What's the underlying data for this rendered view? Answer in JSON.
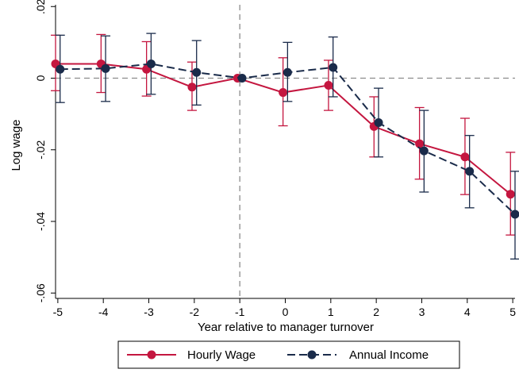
{
  "chart_data": {
    "type": "line",
    "xlabel": "Year relative to manager turnover",
    "ylabel": "Log wage",
    "x": [
      -5,
      -4,
      -3,
      -2,
      -1,
      0,
      1,
      2,
      3,
      4,
      5
    ],
    "x_tick_labels": [
      "-5",
      "-4",
      "-3",
      "-2",
      "-1",
      "0",
      "1",
      "2",
      "3",
      "4",
      "5"
    ],
    "xlim": [
      -5.05,
      5.05
    ],
    "y_ticks": [
      0.02,
      0,
      -0.02,
      -0.04,
      -0.06
    ],
    "y_tick_labels": [
      ".02",
      "0",
      "-.02",
      "-.04",
      "-.06"
    ],
    "ylim": [
      -0.0615,
      0.0205
    ],
    "reference_lines": {
      "x": -1,
      "y": 0
    },
    "grid": false,
    "legend_position": "bottom",
    "series": [
      {
        "name": "Hourly Wage",
        "color": "#c4163f",
        "line_style": "solid",
        "offset": -0.05,
        "values": [
          0.004,
          0.004,
          0.0025,
          -0.0025,
          0.0,
          -0.004,
          -0.002,
          -0.0135,
          -0.0183,
          -0.022,
          -0.0324
        ],
        "ci_low": [
          -0.0035,
          -0.004,
          -0.005,
          -0.009,
          0.0,
          -0.0133,
          -0.009,
          -0.022,
          -0.0282,
          -0.0325,
          -0.0438
        ],
        "ci_high": [
          0.012,
          0.0122,
          0.0102,
          0.0045,
          0.0,
          0.0057,
          0.005,
          -0.0052,
          -0.0082,
          -0.0112,
          -0.0207
        ]
      },
      {
        "name": "Annual Income",
        "color": "#1a2b4a",
        "line_style": "dashed",
        "offset": 0.05,
        "values": [
          0.0025,
          0.0027,
          0.004,
          0.0016,
          0.0,
          0.0016,
          0.003,
          -0.0124,
          -0.0203,
          -0.026,
          -0.038
        ],
        "ci_low": [
          -0.0068,
          -0.0065,
          -0.0045,
          -0.0075,
          0.0,
          -0.0065,
          -0.0052,
          -0.022,
          -0.0318,
          -0.0362,
          -0.0505
        ],
        "ci_high": [
          0.012,
          0.0118,
          0.0125,
          0.0105,
          0.0,
          0.01,
          0.0115,
          -0.0028,
          -0.009,
          -0.016,
          -0.026
        ]
      }
    ]
  }
}
